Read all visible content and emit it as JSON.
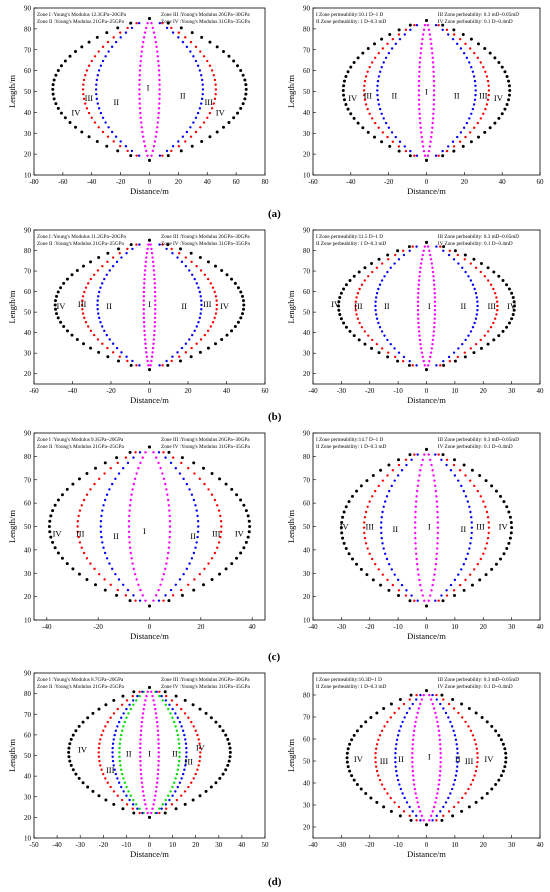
{
  "row_labels": [
    "(a)",
    "(b)",
    "(c)",
    "(d)"
  ],
  "colors": {
    "zone1": "#ff00ff",
    "zone2": "#0000ff",
    "zone3": "#ff0000",
    "zone4": "#000000",
    "zone_extra": "#00dd00"
  },
  "chart_data": [
    {
      "type": "scatter",
      "xlabel": "Distance/m",
      "ylabel": "Length/m",
      "xlim": [
        -80,
        80
      ],
      "ylim": [
        10,
        90
      ],
      "xticks": [
        -80,
        -60,
        -40,
        -20,
        0,
        20,
        40,
        60,
        80
      ],
      "yticks": [
        10,
        20,
        30,
        40,
        50,
        60,
        70,
        80,
        90
      ],
      "y_top": 85,
      "y_bottom": 17,
      "series": [
        {
          "zone": "zone1",
          "halfwidth": 7
        },
        {
          "zone": "zone2",
          "halfwidth": 37
        },
        {
          "zone": "zone3",
          "halfwidth": 46
        },
        {
          "zone": "zone4",
          "halfwidth": 67
        }
      ],
      "annotations": [
        "Zone I :Young's Modulus 12.3GPa~20GPa",
        "Zone III :Young's Modulus 26GPa~30GPa",
        "Zone II :Young's Modulus 21GPa~25GPa",
        "Zone IV :Young's Modulus 31GPa~35GPa"
      ],
      "zone_labels": [
        {
          "text": "I",
          "x": -1,
          "y": 52
        },
        {
          "text": "II",
          "x": -23,
          "y": 45
        },
        {
          "text": "II",
          "x": 23,
          "y": 48
        },
        {
          "text": "III",
          "x": -42,
          "y": 47
        },
        {
          "text": "III",
          "x": 41,
          "y": 45
        },
        {
          "text": "IV",
          "x": -51,
          "y": 40
        },
        {
          "text": "IV",
          "x": 49,
          "y": 40
        }
      ]
    },
    {
      "type": "scatter",
      "xlabel": "Distance/m",
      "ylabel": "Length/m",
      "xlim": [
        -60,
        60
      ],
      "ylim": [
        10,
        90
      ],
      "xticks": [
        -60,
        -40,
        -20,
        0,
        20,
        40,
        60
      ],
      "yticks": [
        10,
        20,
        30,
        40,
        50,
        60,
        70,
        80,
        90
      ],
      "y_top": 84,
      "y_bottom": 17,
      "series": [
        {
          "zone": "zone1",
          "halfwidth": 4
        },
        {
          "zone": "zone2",
          "halfwidth": 26
        },
        {
          "zone": "zone3",
          "halfwidth": 33
        },
        {
          "zone": "zone4",
          "halfwidth": 44
        }
      ],
      "annotations": [
        "I Zone permeability:10.1 D~1 D",
        "III Zone perbeability: 0.3 mD~0.05mD",
        "II Zone perbeability: 1 D~0.3 mD",
        "IV Zone perbeability: 0.1 D~0.4mD"
      ],
      "zone_labels": [
        {
          "text": "I",
          "x": 0,
          "y": 50
        },
        {
          "text": "II",
          "x": -17,
          "y": 48
        },
        {
          "text": "II",
          "x": 16,
          "y": 48
        },
        {
          "text": "III",
          "x": -31,
          "y": 48
        },
        {
          "text": "III",
          "x": 30,
          "y": 48
        },
        {
          "text": "IV",
          "x": -39,
          "y": 47
        },
        {
          "text": "IV",
          "x": 38,
          "y": 47
        }
      ]
    },
    {
      "type": "scatter",
      "xlabel": "Distance/m",
      "ylabel": "Length/m",
      "xlim": [
        -60,
        60
      ],
      "ylim": [
        15,
        90
      ],
      "xticks": [
        -60,
        -40,
        -20,
        0,
        20,
        40,
        60
      ],
      "yticks": [
        20,
        30,
        40,
        50,
        60,
        70,
        80,
        90
      ],
      "y_top": 85,
      "y_bottom": 22,
      "series": [
        {
          "zone": "zone1",
          "halfwidth": 3
        },
        {
          "zone": "zone2",
          "halfwidth": 27
        },
        {
          "zone": "zone3",
          "halfwidth": 35
        },
        {
          "zone": "zone4",
          "halfwidth": 49
        }
      ],
      "annotations": [
        "Zone I :Young's Modulus 11.2GPa~20GPa",
        "Zone III :Young's Modulus 26GPa~30GPa",
        "Zone II :Young's Modulus 21GPa~25GPa",
        "Zone IV :Young's Modulus 31GPa~35GPa"
      ],
      "zone_labels": [
        {
          "text": "I",
          "x": 0,
          "y": 54
        },
        {
          "text": "II",
          "x": -21,
          "y": 53
        },
        {
          "text": "II",
          "x": 18,
          "y": 53
        },
        {
          "text": "III",
          "x": -35,
          "y": 54
        },
        {
          "text": "III",
          "x": 30,
          "y": 54
        },
        {
          "text": "IV",
          "x": -46,
          "y": 53
        },
        {
          "text": "IV",
          "x": 39,
          "y": 53
        }
      ]
    },
    {
      "type": "scatter",
      "xlabel": "Distance/m",
      "ylabel": "Length/m",
      "xlim": [
        -40,
        40
      ],
      "ylim": [
        15,
        90
      ],
      "xticks": [
        -40,
        -30,
        -20,
        -10,
        0,
        10,
        20,
        30,
        40
      ],
      "yticks": [
        20,
        30,
        40,
        50,
        60,
        70,
        80,
        90
      ],
      "y_top": 84,
      "y_bottom": 22,
      "series": [
        {
          "zone": "zone1",
          "halfwidth": 3
        },
        {
          "zone": "zone2",
          "halfwidth": 18
        },
        {
          "zone": "zone3",
          "halfwidth": 25
        },
        {
          "zone": "zone4",
          "halfwidth": 31
        }
      ],
      "annotations": [
        "I Zone permeability:11.5 D~1 D",
        "III Zone perbeability: 0.3 mD~0.05mD",
        "II Zone perbeability: 1 D~0.3 mD",
        "IV Zone perbeability: 0.1 D~0.4mD"
      ],
      "zone_labels": [
        {
          "text": "I",
          "x": 1,
          "y": 53
        },
        {
          "text": "II",
          "x": -14,
          "y": 53
        },
        {
          "text": "II",
          "x": 13,
          "y": 53
        },
        {
          "text": "III",
          "x": -24,
          "y": 53
        },
        {
          "text": "III",
          "x": 23,
          "y": 53
        },
        {
          "text": "IV",
          "x": -32,
          "y": 54
        },
        {
          "text": "IV",
          "x": 30,
          "y": 53
        }
      ]
    },
    {
      "type": "scatter",
      "xlabel": "Distance/m",
      "ylabel": "Length/m",
      "xlim": [
        -45,
        45
      ],
      "ylim": [
        10,
        90
      ],
      "xticks": [
        -40,
        -20,
        0,
        20,
        40
      ],
      "yticks": [
        10,
        20,
        30,
        40,
        50,
        60,
        70,
        80,
        90
      ],
      "y_top": 84,
      "y_bottom": 16,
      "series": [
        {
          "zone": "zone1",
          "halfwidth": 8
        },
        {
          "zone": "zone2",
          "halfwidth": 19
        },
        {
          "zone": "zone3",
          "halfwidth": 28
        },
        {
          "zone": "zone4",
          "halfwidth": 39
        }
      ],
      "annotations": [
        "Zone I :Young's Modulus 9.3GPa~20GPa",
        "Zone III :Young's Modulus 26GPa~30GPa",
        "Zone II :Young's Modulus 21GPa~25GPa",
        "Zone IV :Young's Modulus 31GPa~35GPa"
      ],
      "zone_labels": [
        {
          "text": "I",
          "x": -2,
          "y": 48
        },
        {
          "text": "II",
          "x": -13,
          "y": 46
        },
        {
          "text": "II",
          "x": 17,
          "y": 46
        },
        {
          "text": "III",
          "x": -27,
          "y": 47
        },
        {
          "text": "III",
          "x": 26,
          "y": 47
        },
        {
          "text": "IV",
          "x": -36,
          "y": 47
        },
        {
          "text": "IV",
          "x": 35,
          "y": 47
        }
      ]
    },
    {
      "type": "scatter",
      "xlabel": "Distance/m",
      "ylabel": "Length/m",
      "xlim": [
        -40,
        40
      ],
      "ylim": [
        10,
        90
      ],
      "xticks": [
        -40,
        -30,
        -20,
        -10,
        0,
        10,
        20,
        30,
        40
      ],
      "yticks": [
        10,
        20,
        30,
        40,
        50,
        60,
        70,
        80,
        90
      ],
      "y_top": 83,
      "y_bottom": 16,
      "series": [
        {
          "zone": "zone1",
          "halfwidth": 4
        },
        {
          "zone": "zone2",
          "halfwidth": 16
        },
        {
          "zone": "zone3",
          "halfwidth": 22
        },
        {
          "zone": "zone4",
          "halfwidth": 30
        }
      ],
      "annotations": [
        "I Zone permeability:14.7 D~1 D",
        "III Zone perbeability: 0.3 mD~0.05mD",
        "II Zone perbeability: 1 D~0.3 mD",
        "IV Zone perbeability: 0.1 D~0.4mD"
      ],
      "zone_labels": [
        {
          "text": "I",
          "x": 1,
          "y": 50
        },
        {
          "text": "II",
          "x": -11,
          "y": 49
        },
        {
          "text": "II",
          "x": 13,
          "y": 49
        },
        {
          "text": "III",
          "x": -20,
          "y": 50
        },
        {
          "text": "III",
          "x": 19,
          "y": 50
        },
        {
          "text": "IV",
          "x": -29,
          "y": 50
        },
        {
          "text": "IV",
          "x": 27,
          "y": 50
        }
      ]
    },
    {
      "type": "scatter",
      "xlabel": "Distance/m",
      "ylabel": "Length/m",
      "xlim": [
        -50,
        50
      ],
      "ylim": [
        10,
        90
      ],
      "xticks": [
        -50,
        -40,
        -30,
        -20,
        -10,
        0,
        10,
        20,
        30,
        40,
        50
      ],
      "yticks": [
        10,
        20,
        30,
        40,
        50,
        60,
        70,
        80,
        90
      ],
      "y_top": 83,
      "y_bottom": 20,
      "series": [
        {
          "zone": "zone1",
          "halfwidth": 4
        },
        {
          "zone": "zone_extra",
          "halfwidth": 13
        },
        {
          "zone": "zone2",
          "halfwidth": 16
        },
        {
          "zone": "zone3",
          "halfwidth": 22
        },
        {
          "zone": "zone4",
          "halfwidth": 35
        }
      ],
      "annotations": [
        "Zone I :Young's Modulus 8.7GPa~20GPa",
        "Zone III :Young's Modulus 26GPa~30GPa",
        "Zone II :Young's Modulus 21GPa~25GPa",
        "Zone IV :Young's Modulus 31GPa~35GPa"
      ],
      "zone_labels": [
        {
          "text": "I",
          "x": 0,
          "y": 51
        },
        {
          "text": "II",
          "x": -9,
          "y": 51
        },
        {
          "text": "II",
          "x": 11,
          "y": 51
        },
        {
          "text": "III",
          "x": -17,
          "y": 43
        },
        {
          "text": "III",
          "x": 17,
          "y": 47
        },
        {
          "text": "IV",
          "x": -29,
          "y": 53
        },
        {
          "text": "IV",
          "x": 22,
          "y": 54
        }
      ]
    },
    {
      "type": "scatter",
      "xlabel": "Distance/m",
      "ylabel": "Length/m",
      "xlim": [
        -40,
        40
      ],
      "ylim": [
        15,
        90
      ],
      "xticks": [
        -40,
        -30,
        -20,
        -10,
        0,
        10,
        20,
        30,
        40
      ],
      "yticks": [
        20,
        30,
        40,
        50,
        60,
        70,
        80
      ],
      "y_top": 82,
      "y_bottom": 21,
      "series": [
        {
          "zone": "zone1",
          "halfwidth": 5
        },
        {
          "zone": "zone2",
          "halfwidth": 11
        },
        {
          "zone": "zone3",
          "halfwidth": 18
        },
        {
          "zone": "zone4",
          "halfwidth": 28
        }
      ],
      "annotations": [
        "I Zone permeability:16.3D~1 D",
        "III Zone perbeability: 0.3 mD~0.05mD",
        "II Zone perbeability: 1 D~0.3 mD",
        "IV Zone perbeability: 0.1 D~0.4mD"
      ],
      "zone_labels": [
        {
          "text": "I",
          "x": 1,
          "y": 52
        },
        {
          "text": "II",
          "x": -9,
          "y": 51
        },
        {
          "text": "II",
          "x": 11,
          "y": 51
        },
        {
          "text": "III",
          "x": -15,
          "y": 50
        },
        {
          "text": "III",
          "x": 15,
          "y": 50
        },
        {
          "text": "IV",
          "x": -24,
          "y": 51
        },
        {
          "text": "IV",
          "x": 22,
          "y": 51
        }
      ]
    }
  ]
}
